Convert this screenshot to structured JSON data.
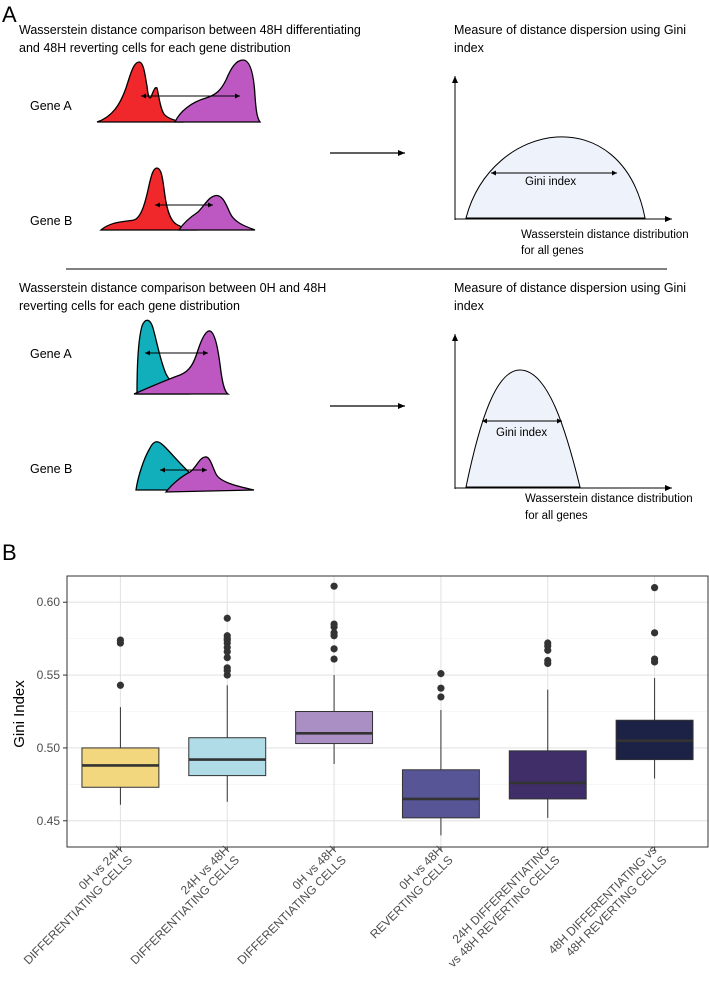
{
  "panel_a": {
    "letter": "A",
    "top": {
      "caption_line1": "Wasserstein distance comparison between 48H differentiating",
      "caption_line2": "and 48H reverting cells for each gene distribution",
      "gene_a_label": "Gene A",
      "gene_b_label": "Gene B",
      "right_caption_line1": "Measure of distance dispersion using Gini",
      "right_caption_line2": "index",
      "gini_label": "Gini index",
      "xaxis_line1": "Wasserstein distance distribution",
      "xaxis_line2": "for all genes"
    },
    "bottom": {
      "caption_line1": "Wasserstein distance comparison between 0H and 48H",
      "caption_line2": "reverting cells for each gene distribution",
      "gene_a_label": "Gene A",
      "gene_b_label": "Gene B",
      "right_caption_line1": "Measure of distance dispersion using Gini",
      "right_caption_line2": "index",
      "gini_label": "Gini index",
      "xaxis_line1": "Wasserstein distance distribution",
      "xaxis_line2": "for all genes"
    },
    "colors": {
      "red": "#f0282b",
      "purple": "#bd58c3",
      "teal": "#11aebc",
      "curve_fill": "#eef2fa"
    }
  },
  "chart_data": {
    "type": "boxplot",
    "panel_letter": "B",
    "title": "",
    "xlabel": "",
    "ylabel": "Gini Index",
    "ylim": [
      0.432,
      0.618
    ],
    "yticks": [
      0.45,
      0.5,
      0.55,
      0.6
    ],
    "ytick_labels": [
      "0.45",
      "0.50",
      "0.55",
      "0.60"
    ],
    "grid": true,
    "categories": [
      {
        "line1": "0H vs 24H",
        "line2": "DIFFERENTIATING CELLS"
      },
      {
        "line1": "24H vs 48H",
        "line2": "DIFFERENTIATING CELLS"
      },
      {
        "line1": "0H vs 48H",
        "line2": "DIFFERENTIATING CELLS"
      },
      {
        "line1": "0H vs 48H",
        "line2": "REVERTING CELLS"
      },
      {
        "line1": "24H DIFFERENTIATING",
        "line2": "vs 48H REVERTING CELLS"
      },
      {
        "line1": "48H DIFFERENTIATING vs",
        "line2": "48H REVERTING CELLS"
      }
    ],
    "series": [
      {
        "color": "#f2d77e",
        "min": 0.461,
        "q1": 0.473,
        "median": 0.488,
        "q3": 0.5,
        "max": 0.528,
        "outliers": [
          0.543,
          0.572,
          0.574
        ]
      },
      {
        "color": "#b0dce8",
        "min": 0.463,
        "q1": 0.481,
        "median": 0.492,
        "q3": 0.507,
        "max": 0.543,
        "outliers": [
          0.55,
          0.553,
          0.555,
          0.562,
          0.566,
          0.569,
          0.572,
          0.574,
          0.575,
          0.577,
          0.589
        ]
      },
      {
        "color": "#a98fc4",
        "min": 0.489,
        "q1": 0.503,
        "median": 0.51,
        "q3": 0.525,
        "max": 0.55,
        "outliers": [
          0.561,
          0.568,
          0.577,
          0.579,
          0.583,
          0.585,
          0.611
        ]
      },
      {
        "color": "#575596",
        "min": 0.44,
        "q1": 0.452,
        "median": 0.465,
        "q3": 0.485,
        "max": 0.526,
        "outliers": [
          0.535,
          0.541,
          0.551
        ]
      },
      {
        "color": "#3f2e68",
        "min": 0.452,
        "q1": 0.465,
        "median": 0.476,
        "q3": 0.498,
        "max": 0.54,
        "outliers": [
          0.558,
          0.56,
          0.567,
          0.57,
          0.572
        ]
      },
      {
        "color": "#1c2246",
        "min": 0.479,
        "q1": 0.492,
        "median": 0.505,
        "q3": 0.519,
        "max": 0.548,
        "outliers": [
          0.559,
          0.561,
          0.579,
          0.61
        ]
      }
    ]
  }
}
